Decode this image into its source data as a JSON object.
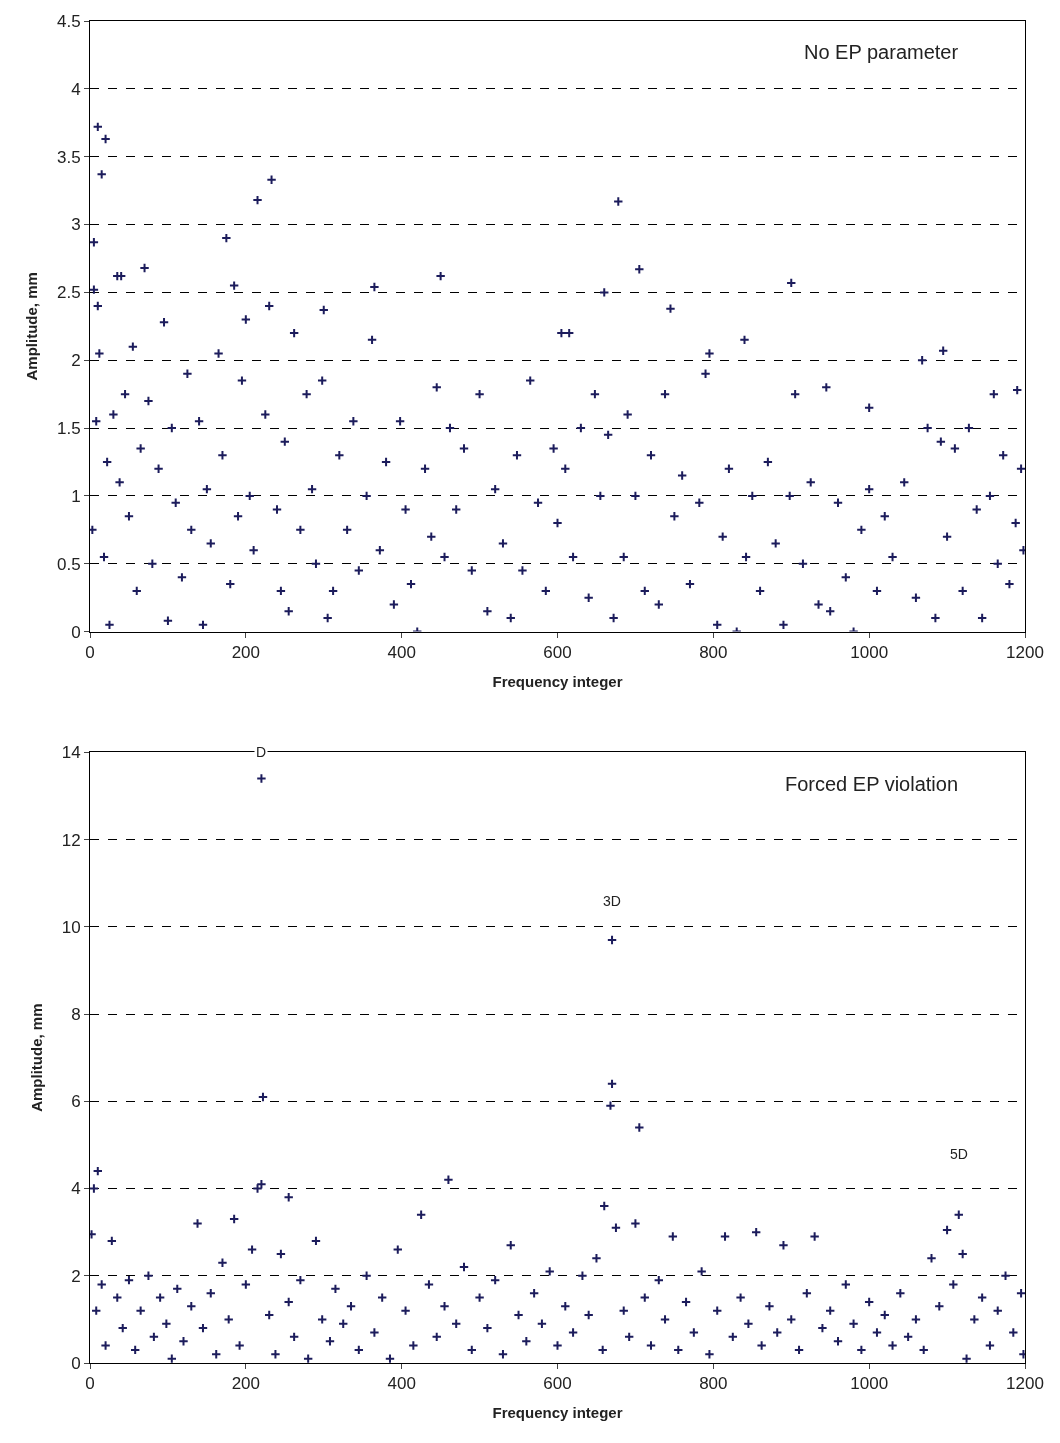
{
  "chart_data": [
    {
      "type": "scatter",
      "xlabel": "Frequency integer",
      "ylabel": "Amplitude, mm",
      "annotations": [
        "No EP parameter"
      ],
      "color": "#1c1c5c",
      "marker": "cross",
      "grid": "y",
      "line_style": "dashed",
      "xlim": [
        0,
        1200
      ],
      "xticks": [
        0,
        200,
        400,
        600,
        800,
        1000,
        1200
      ],
      "ylim": [
        0,
        4.5
      ],
      "yticks": [
        0,
        0.5,
        1,
        1.5,
        2,
        2.5,
        3,
        3.5,
        4,
        4.5
      ],
      "x": [
        10,
        15,
        20,
        215,
        233,
        678,
        175,
        5,
        70,
        35,
        40,
        705,
        900,
        450,
        185,
        365,
        660,
        745,
        10,
        5,
        300,
        605,
        615,
        840,
        1095,
        1190,
        1160,
        1000,
        3,
        8,
        12,
        18,
        22,
        25,
        30,
        38,
        45,
        50,
        55,
        60,
        65,
        75,
        80,
        88,
        95,
        100,
        105,
        110,
        118,
        125,
        130,
        140,
        145,
        150,
        155,
        165,
        170,
        180,
        190,
        195,
        200,
        205,
        210,
        225,
        230,
        240,
        245,
        250,
        255,
        262,
        270,
        278,
        285,
        290,
        298,
        305,
        312,
        320,
        330,
        338,
        345,
        355,
        362,
        372,
        380,
        390,
        398,
        405,
        412,
        420,
        430,
        438,
        445,
        455,
        462,
        470,
        480,
        490,
        500,
        510,
        520,
        530,
        540,
        548,
        555,
        565,
        575,
        585,
        595,
        600,
        610,
        620,
        630,
        640,
        648,
        655,
        665,
        672,
        685,
        690,
        700,
        712,
        720,
        730,
        738,
        750,
        760,
        770,
        782,
        790,
        795,
        805,
        812,
        820,
        830,
        842,
        850,
        860,
        870,
        880,
        890,
        898,
        905,
        915,
        925,
        935,
        945,
        950,
        960,
        970,
        980,
        990,
        1000,
        1010,
        1020,
        1030,
        1045,
        1060,
        1068,
        1075,
        1085,
        1092,
        1100,
        1110,
        1120,
        1128,
        1138,
        1145,
        1155,
        1165,
        1172,
        1180,
        1188,
        1195,
        1198
      ],
      "values": [
        3.72,
        3.37,
        3.63,
        3.18,
        3.33,
        3.17,
        2.9,
        2.87,
        2.68,
        2.62,
        2.62,
        2.67,
        2.57,
        2.62,
        2.55,
        2.54,
        2.5,
        2.38,
        2.4,
        2.52,
        2.37,
        2.2,
        2.2,
        2.15,
        2.07,
        1.78,
        1.75,
        1.65,
        0.75,
        1.55,
        2.05,
        0.55,
        1.25,
        0.05,
        1.6,
        1.1,
        1.75,
        0.85,
        2.1,
        0.3,
        1.35,
        1.7,
        0.5,
        1.2,
        2.28,
        0.08,
        1.5,
        0.95,
        0.4,
        1.9,
        0.75,
        1.55,
        0.05,
        1.05,
        0.65,
        2.05,
        1.3,
        0.35,
        0.85,
        1.85,
        2.3,
        1.0,
        0.6,
        1.6,
        2.4,
        0.9,
        0.3,
        1.4,
        0.15,
        2.2,
        0.75,
        1.75,
        1.05,
        0.5,
        1.85,
        0.1,
        0.3,
        1.3,
        0.75,
        1.55,
        0.45,
        1.0,
        2.15,
        0.6,
        1.25,
        0.2,
        1.55,
        0.9,
        0.35,
        0.0,
        1.2,
        0.7,
        1.8,
        0.55,
        1.5,
        0.9,
        1.35,
        0.45,
        1.75,
        0.15,
        1.05,
        0.65,
        0.1,
        1.3,
        0.45,
        1.85,
        0.95,
        0.3,
        1.35,
        0.8,
        1.2,
        0.55,
        1.5,
        0.25,
        1.75,
        1.0,
        1.45,
        0.1,
        0.55,
        1.6,
        1.0,
        0.3,
        1.3,
        0.2,
        1.75,
        0.85,
        1.15,
        0.35,
        0.95,
        1.9,
        2.05,
        0.05,
        0.7,
        1.2,
        0.0,
        0.55,
        1.0,
        0.3,
        1.25,
        0.65,
        0.05,
        1.0,
        1.75,
        0.5,
        1.1,
        0.2,
        1.8,
        0.15,
        0.95,
        0.4,
        0.0,
        0.75,
        1.05,
        0.3,
        0.85,
        0.55,
        1.1,
        0.25,
        2.0,
        1.5,
        0.1,
        1.4,
        0.7,
        1.35,
        0.3,
        1.5,
        0.9,
        0.1,
        1.0,
        0.5,
        1.3,
        0.35,
        0.8,
        1.2,
        0.6
      ]
    },
    {
      "type": "scatter",
      "xlabel": "Frequency integer",
      "ylabel": "Amplitude, mm",
      "annotations": [
        "Forced EP violation",
        {
          "text": "D",
          "x": 220,
          "y": 14
        },
        {
          "text": "3D",
          "x": 670,
          "y": 10.6
        },
        {
          "text": "5D",
          "x": 1115,
          "y": 4.8
        }
      ],
      "color": "#1c1c5c",
      "marker": "cross",
      "grid": "y",
      "line_style": "dashed",
      "xlim": [
        0,
        1200
      ],
      "xticks": [
        0,
        200,
        400,
        600,
        800,
        1000,
        1200
      ],
      "ylim": [
        0,
        14
      ],
      "yticks": [
        0,
        2,
        4,
        6,
        8,
        10,
        12,
        14
      ],
      "x": [
        220,
        222,
        220,
        215,
        10,
        5,
        460,
        255,
        670,
        670,
        668,
        705,
        1115,
        1100,
        660,
        1120,
        2,
        8,
        15,
        20,
        28,
        35,
        42,
        50,
        58,
        65,
        75,
        82,
        90,
        98,
        105,
        112,
        120,
        130,
        138,
        145,
        155,
        162,
        170,
        178,
        185,
        192,
        200,
        208,
        230,
        238,
        245,
        255,
        262,
        270,
        280,
        290,
        298,
        308,
        315,
        325,
        335,
        345,
        355,
        365,
        375,
        385,
        395,
        405,
        415,
        425,
        435,
        445,
        455,
        470,
        480,
        490,
        500,
        510,
        520,
        530,
        540,
        550,
        560,
        570,
        580,
        590,
        600,
        610,
        620,
        632,
        640,
        650,
        658,
        675,
        685,
        692,
        700,
        712,
        720,
        730,
        738,
        748,
        755,
        765,
        775,
        785,
        795,
        805,
        815,
        825,
        835,
        845,
        855,
        862,
        872,
        882,
        890,
        900,
        910,
        920,
        930,
        940,
        950,
        960,
        970,
        980,
        990,
        1000,
        1010,
        1020,
        1030,
        1040,
        1050,
        1060,
        1070,
        1080,
        1090,
        1108,
        1125,
        1135,
        1145,
        1155,
        1165,
        1175,
        1185,
        1195,
        1198
      ],
      "values": [
        13.4,
        6.1,
        4.1,
        4.0,
        4.4,
        4.0,
        4.2,
        3.8,
        9.7,
        6.4,
        5.9,
        5.4,
        3.4,
        3.05,
        3.6,
        2.5,
        2.95,
        1.2,
        1.8,
        0.4,
        2.8,
        1.5,
        0.8,
        1.9,
        0.3,
        1.2,
        2.0,
        0.6,
        1.5,
        0.9,
        0.1,
        1.7,
        0.5,
        1.3,
        3.2,
        0.8,
        1.6,
        0.2,
        2.3,
        1.0,
        3.3,
        0.4,
        1.8,
        2.6,
        1.1,
        0.2,
        2.5,
        1.4,
        0.6,
        1.9,
        0.1,
        2.8,
        1.0,
        0.5,
        1.7,
        0.9,
        1.3,
        0.3,
        2.0,
        0.7,
        1.5,
        0.1,
        2.6,
        1.2,
        0.4,
        3.4,
        1.8,
        0.6,
        1.3,
        0.9,
        2.2,
        0.3,
        1.5,
        0.8,
        1.9,
        0.2,
        2.7,
        1.1,
        0.5,
        1.6,
        0.9,
        2.1,
        0.4,
        1.3,
        0.7,
        2.0,
        1.1,
        2.4,
        0.3,
        3.1,
        1.2,
        0.6,
        3.2,
        1.5,
        0.4,
        1.9,
        1.0,
        2.9,
        0.3,
        1.4,
        0.7,
        2.1,
        0.2,
        1.2,
        2.9,
        0.6,
        1.5,
        0.9,
        3.0,
        0.4,
        1.3,
        0.7,
        2.7,
        1.0,
        0.3,
        1.6,
        2.9,
        0.8,
        1.2,
        0.5,
        1.8,
        0.9,
        0.3,
        1.4,
        0.7,
        1.1,
        0.4,
        1.6,
        0.6,
        1.0,
        0.3,
        2.4,
        1.3,
        1.8,
        0.1,
        1.0,
        1.5,
        0.4,
        1.2,
        2.0,
        0.7,
        1.6,
        0.2
      ]
    }
  ]
}
